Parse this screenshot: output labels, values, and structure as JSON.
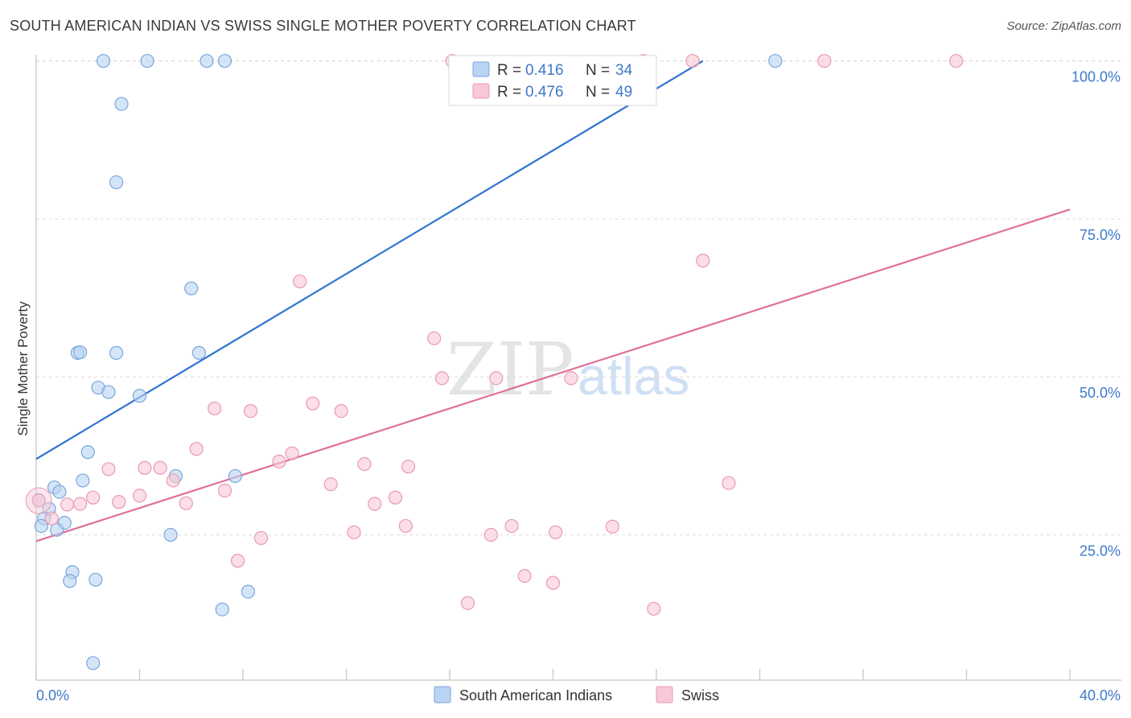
{
  "header": {
    "title": "SOUTH AMERICAN INDIAN VS SWISS SINGLE MOTHER POVERTY CORRELATION CHART",
    "source": "Source: ZipAtlas.com"
  },
  "watermark": {
    "zip": "ZIP",
    "atlas": "atlas"
  },
  "colors": {
    "blue_fill": "#b9d3f3",
    "blue_stroke": "#7aa6dc",
    "blue_line": "#2f74d0",
    "pink_fill": "#f8c8d6",
    "pink_stroke": "#e89ab4",
    "pink_line": "#e07098",
    "accent_text": "#3f79c9"
  },
  "legend": {
    "r_label": "R =",
    "n_label": "N =",
    "rows": [
      {
        "r": "0.416",
        "n": "34"
      },
      {
        "r": "0.476",
        "n": "49"
      }
    ]
  },
  "chart_data": {
    "type": "scatter",
    "title": "SOUTH AMERICAN INDIAN VS SWISS SINGLE MOTHER POVERTY CORRELATION CHART",
    "xlabel": "",
    "ylabel": "Single Mother Poverty",
    "xlim": [
      0,
      40
    ],
    "ylim": [
      2,
      102
    ],
    "x_tick_labels": [
      "0.0%",
      "40.0%"
    ],
    "y_ticks": [
      25,
      50,
      75,
      100
    ],
    "y_tick_labels": [
      "25.0%",
      "50.0%",
      "75.0%",
      "100.0%"
    ],
    "grid": true,
    "series": [
      {
        "name": "South American Indians",
        "color": "blue",
        "points": [
          [
            2.6,
            100
          ],
          [
            4.3,
            100
          ],
          [
            6.6,
            100
          ],
          [
            7.3,
            100
          ],
          [
            28.6,
            100
          ],
          [
            3.3,
            93.2
          ],
          [
            3.1,
            80.8
          ],
          [
            6.0,
            64.0
          ],
          [
            1.6,
            53.8
          ],
          [
            1.7,
            53.9
          ],
          [
            3.1,
            53.8
          ],
          [
            6.3,
            53.8
          ],
          [
            2.4,
            48.3
          ],
          [
            2.8,
            47.6
          ],
          [
            4.0,
            47.0
          ],
          [
            2.0,
            38.1
          ],
          [
            0.7,
            32.5
          ],
          [
            0.9,
            31.8
          ],
          [
            1.8,
            33.6
          ],
          [
            5.4,
            34.3
          ],
          [
            7.7,
            34.3
          ],
          [
            0.5,
            29.1
          ],
          [
            0.3,
            27.6
          ],
          [
            1.1,
            26.9
          ],
          [
            0.2,
            26.4
          ],
          [
            0.8,
            25.8
          ],
          [
            5.2,
            25.0
          ],
          [
            1.4,
            19.1
          ],
          [
            1.3,
            17.7
          ],
          [
            2.3,
            17.9
          ],
          [
            8.2,
            16.0
          ],
          [
            7.2,
            13.2
          ],
          [
            2.2,
            4.7
          ],
          [
            0.1,
            30.5
          ]
        ]
      },
      {
        "name": "Swiss",
        "color": "pink",
        "points": [
          [
            16.1,
            100
          ],
          [
            23.5,
            100
          ],
          [
            25.4,
            100
          ],
          [
            30.5,
            100
          ],
          [
            35.6,
            100
          ],
          [
            25.8,
            68.4
          ],
          [
            10.2,
            65.1
          ],
          [
            15.4,
            56.1
          ],
          [
            15.7,
            49.8
          ],
          [
            17.8,
            49.8
          ],
          [
            20.7,
            49.8
          ],
          [
            6.9,
            45.0
          ],
          [
            8.3,
            44.6
          ],
          [
            10.7,
            45.8
          ],
          [
            11.8,
            44.6
          ],
          [
            6.2,
            38.6
          ],
          [
            9.9,
            37.9
          ],
          [
            9.4,
            36.6
          ],
          [
            12.7,
            36.2
          ],
          [
            14.4,
            35.8
          ],
          [
            2.8,
            35.4
          ],
          [
            4.2,
            35.6
          ],
          [
            4.8,
            35.6
          ],
          [
            5.3,
            33.6
          ],
          [
            26.8,
            33.2
          ],
          [
            7.3,
            32.0
          ],
          [
            11.4,
            33.0
          ],
          [
            4.0,
            31.2
          ],
          [
            2.2,
            30.9
          ],
          [
            1.2,
            29.8
          ],
          [
            1.7,
            29.9
          ],
          [
            3.2,
            30.2
          ],
          [
            5.8,
            30.0
          ],
          [
            13.1,
            29.9
          ],
          [
            13.9,
            30.9
          ],
          [
            0.1,
            30.4
          ],
          [
            0.6,
            27.6
          ],
          [
            14.3,
            26.4
          ],
          [
            18.4,
            26.4
          ],
          [
            22.3,
            26.3
          ],
          [
            12.3,
            25.4
          ],
          [
            17.6,
            25.0
          ],
          [
            20.1,
            25.4
          ],
          [
            8.7,
            24.5
          ],
          [
            7.8,
            20.9
          ],
          [
            18.9,
            18.5
          ],
          [
            20.0,
            17.4
          ],
          [
            16.7,
            14.2
          ],
          [
            23.9,
            13.3
          ]
        ]
      }
    ],
    "trendlines": [
      {
        "series": "South American Indians",
        "x": [
          0,
          25.8
        ],
        "y": [
          37.0,
          100
        ]
      },
      {
        "series": "Swiss",
        "x": [
          0,
          40
        ],
        "y": [
          24.0,
          76.5
        ]
      }
    ],
    "legend_position": "top-center"
  }
}
